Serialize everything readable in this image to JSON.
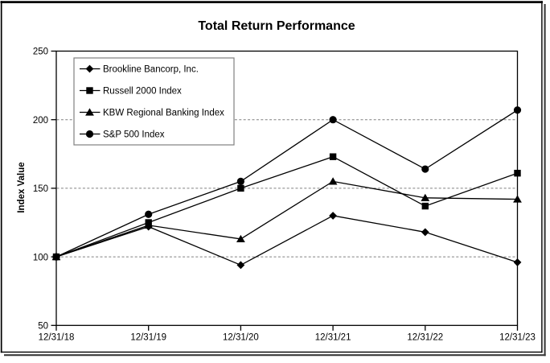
{
  "chart_data": {
    "type": "line",
    "title": "Total Return Performance",
    "ylabel": "Index Value",
    "xlabel": "",
    "x_labels": [
      "12/31/18",
      "12/31/19",
      "12/31/20",
      "12/31/21",
      "12/31/22",
      "12/31/23"
    ],
    "ylim": [
      50,
      250
    ],
    "y_ticks": [
      50,
      100,
      150,
      200,
      250
    ],
    "grid": "horizontal dashed gridlines at 100, 150, 200",
    "legend_position": "inside top-left",
    "series": [
      {
        "name": "Brookline Bancorp, Inc.",
        "marker": "diamond",
        "values": [
          100,
          122,
          94,
          130,
          118,
          96
        ]
      },
      {
        "name": "Russell 2000 Index",
        "marker": "square",
        "values": [
          100,
          125,
          150,
          173,
          137,
          161
        ]
      },
      {
        "name": "KBW Regional Banking Index",
        "marker": "triangle",
        "values": [
          100,
          123,
          113,
          155,
          143,
          142
        ]
      },
      {
        "name": "S&P 500 Index",
        "marker": "circle",
        "values": [
          100,
          131,
          155,
          200,
          164,
          207
        ]
      }
    ],
    "colors": {
      "series_line": "#000000",
      "marker_fill": "#000000",
      "gridline": "#808080",
      "plot_border": "#000000",
      "legend_border": "#808080",
      "background": "#ffffff",
      "frame_shadow": "#3a3a3a"
    }
  }
}
